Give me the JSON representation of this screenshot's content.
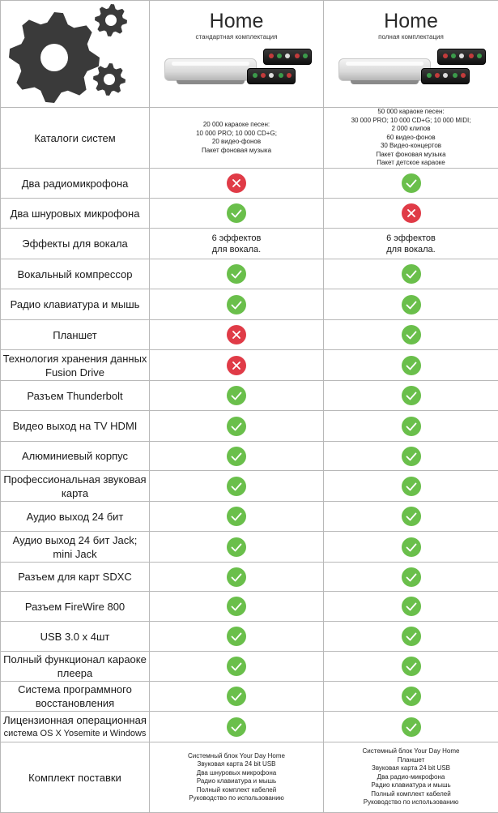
{
  "header": {
    "products": [
      {
        "title": "Home",
        "subtitle": "стандартная комплектация"
      },
      {
        "title": "Home",
        "subtitle": "полная комплектация"
      }
    ]
  },
  "icons": {
    "logo": "gears-icon",
    "included": "check-icon",
    "not_included": "cross-icon"
  },
  "colors": {
    "included": "#6abf4b",
    "not_included": "#e03b47",
    "gears": "#3a3a3a"
  },
  "rows": [
    {
      "feature": "Каталоги систем",
      "type": "list",
      "standard": [
        "20 000 караоке песен:",
        "10 000 PRO; 10 000 CD+G;",
        "20 видео-фонов",
        "Пакет фоновая музыка"
      ],
      "full": [
        "50 000 караоке песен:",
        "30 000 PRO; 10 000 CD+G; 10 000 MIDI;",
        "2 000 клипов",
        "60 видео-фонов",
        "30 Видео-концертов",
        "Пакет фоновая музыка",
        "Пакет детское караоке"
      ]
    },
    {
      "feature": "Два радиомикрофона",
      "type": "mark",
      "standard": false,
      "full": true
    },
    {
      "feature": "Два шнуровых микрофона",
      "type": "mark",
      "standard": true,
      "full": false
    },
    {
      "feature": "Эффекты для вокала",
      "type": "list",
      "small": false,
      "standard": [
        "6 эффектов",
        "для вокала."
      ],
      "full": [
        "6 эффектов",
        "для вокала."
      ]
    },
    {
      "feature": "Вокальный компрессор",
      "type": "mark",
      "standard": true,
      "full": true
    },
    {
      "feature": "Радио клавиатура и мышь",
      "type": "mark",
      "standard": true,
      "full": true
    },
    {
      "feature": "Планшет",
      "type": "mark",
      "standard": false,
      "full": true
    },
    {
      "feature": "Технология хранения данных Fusion Drive",
      "type": "mark",
      "standard": false,
      "full": true
    },
    {
      "feature": "Разъем Thunderbolt",
      "type": "mark",
      "standard": true,
      "full": true
    },
    {
      "feature": "Видео выход на TV HDMI",
      "type": "mark",
      "standard": true,
      "full": true
    },
    {
      "feature": "Алюминиевый корпус",
      "type": "mark",
      "standard": true,
      "full": true
    },
    {
      "feature": "Профессиональная звуковая карта",
      "type": "mark",
      "standard": true,
      "full": true
    },
    {
      "feature": "Аудио выход 24 бит",
      "type": "mark",
      "standard": true,
      "full": true
    },
    {
      "feature": "Аудио выход 24 бит Jack; mini Jack",
      "type": "mark",
      "standard": true,
      "full": true
    },
    {
      "feature": "Разъем для карт SDXC",
      "type": "mark",
      "standard": true,
      "full": true
    },
    {
      "feature": "Разъем FireWire 800",
      "type": "mark",
      "standard": true,
      "full": true
    },
    {
      "feature": "USB 3.0 х 4шт",
      "type": "mark",
      "standard": true,
      "full": true
    },
    {
      "feature": "Полный функционал караоке плеера",
      "type": "mark",
      "standard": true,
      "full": true
    },
    {
      "feature": "Система программного восстановления",
      "type": "mark",
      "standard": true,
      "full": true
    },
    {
      "feature": "Лицензионная операционная",
      "feature_sub": "система OS X Yosemite и Windows",
      "type": "mark",
      "standard": true,
      "full": true
    },
    {
      "feature": "Комплект поставки",
      "type": "list",
      "standard": [
        "Системный блок Your Day Home",
        "Звуковая карта 24 bit USB",
        "Два шнуровых микрофона",
        "Радио клавиатура и мышь",
        "Полный комплект кабелей",
        "Руководство по использованию"
      ],
      "full": [
        "Системный блок Your Day Home",
        "Планшет",
        "Звуковая карта 24 bit USB",
        "Два радио-микрофона",
        "Радио клавиатура и мышь",
        "Полный комплект кабелей",
        "Руководство по использованию"
      ]
    }
  ]
}
